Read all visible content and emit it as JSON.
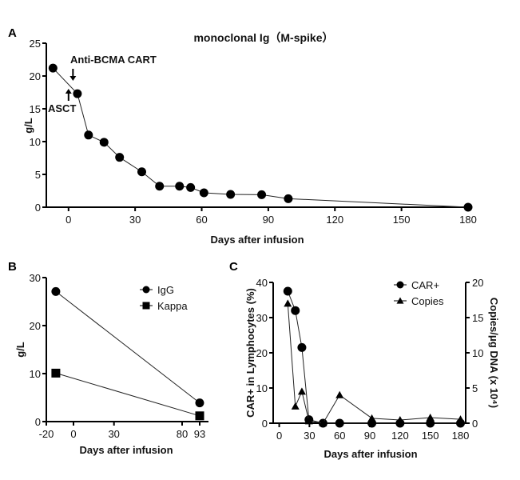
{
  "chart_data": [
    {
      "panel": "A",
      "type": "line",
      "title": "monoclonal Ig（M-spike）",
      "xlabel": "Days after infusion",
      "ylabel": "g/L",
      "xlim": [
        -10,
        180
      ],
      "ylim": [
        0,
        25
      ],
      "xticks": [
        0,
        30,
        60,
        90,
        120,
        150,
        180
      ],
      "yticks": [
        0,
        5,
        10,
        15,
        20,
        25
      ],
      "grid": false,
      "annotations": [
        {
          "text": "Anti-BCMA CART",
          "x": 2,
          "arrow": "down"
        },
        {
          "text": "ASCT",
          "x": 0,
          "arrow": "up"
        }
      ],
      "series": [
        {
          "marker": "circle",
          "x": [
            -7,
            4,
            9,
            16,
            23,
            33,
            41,
            50,
            55,
            61,
            73,
            87,
            99,
            180
          ],
          "y": [
            21.2,
            17.3,
            11.0,
            9.9,
            7.6,
            5.4,
            3.2,
            3.2,
            3.0,
            2.2,
            1.95,
            1.9,
            1.3,
            0
          ]
        }
      ]
    },
    {
      "panel": "B",
      "type": "line",
      "xlabel": "Days after infusion",
      "ylabel": "g/L",
      "ylim": [
        0,
        30
      ],
      "xticks": [
        -20,
        0,
        30,
        80,
        93
      ],
      "yticks": [
        0,
        10,
        20,
        30
      ],
      "grid": false,
      "legend": "top-right",
      "series": [
        {
          "name": "IgG",
          "marker": "circle",
          "x": [
            -13,
            93
          ],
          "y": [
            27.1,
            3.9
          ]
        },
        {
          "name": "Kappa",
          "marker": "square",
          "x": [
            -13,
            93
          ],
          "y": [
            10.1,
            1.2
          ]
        }
      ]
    },
    {
      "panel": "C",
      "type": "line",
      "xlabel": "Days after infusion",
      "ylabel": "CAR+ in Lymphocytes (%)",
      "ylabel_right": "Copies/μg DNA (x 10⁴)",
      "xlim": [
        -6,
        180
      ],
      "ylim": [
        0,
        40
      ],
      "ylim_right": [
        0,
        20
      ],
      "xticks": [
        0,
        30,
        60,
        90,
        120,
        150,
        180
      ],
      "yticks": [
        0,
        10,
        20,
        30,
        40
      ],
      "yticks_right": [
        0,
        5,
        10,
        15,
        20
      ],
      "grid": false,
      "legend": "top-right",
      "series": [
        {
          "name": "CAR+",
          "marker": "circle",
          "axis": "left",
          "x": [
            8.5,
            16,
            22.5,
            29.5,
            43.5,
            60,
            92,
            120,
            150,
            180
          ],
          "y": [
            37.5,
            32,
            21.5,
            1,
            0,
            0,
            0,
            0,
            0,
            0
          ]
        },
        {
          "name": "Copies",
          "marker": "triangle",
          "axis": "right",
          "x": [
            8.5,
            16,
            22.5,
            29.5,
            43.5,
            60,
            92,
            120,
            150,
            180
          ],
          "y": [
            17,
            2.4,
            4.5,
            0.3,
            0,
            4,
            0.7,
            0.45,
            0.8,
            0.55
          ]
        }
      ]
    }
  ]
}
